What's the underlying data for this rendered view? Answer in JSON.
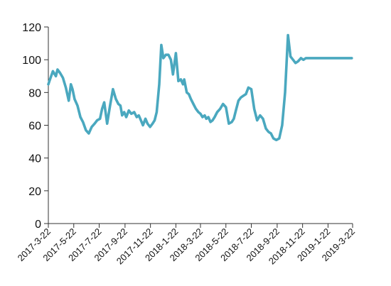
{
  "chart_data": {
    "type": "line",
    "title": "",
    "xlabel": "",
    "ylabel": "",
    "ylim": [
      0,
      120
    ],
    "y_ticks": [
      0,
      20,
      40,
      60,
      80,
      100,
      120
    ],
    "x_ticks": [
      "2017-3-22",
      "2017-5-22",
      "2017-7-22",
      "2017-9-22",
      "2017-11-22",
      "2018-1-22",
      "2018-3-22",
      "2018-5-22",
      "2018-7-22",
      "2018-9-22",
      "2018-11-22",
      "2019-1-22",
      "2019-3-22"
    ],
    "grid": false,
    "legend": "none",
    "colors": {
      "line": "#4aa8bf",
      "axis": "#333333"
    },
    "series": [
      {
        "x": [
          "2017-3-22",
          "2017-3-26",
          "2017-4-2",
          "2017-4-9",
          "2017-4-13",
          "2017-4-19",
          "2017-4-26",
          "2017-5-3",
          "2017-5-10",
          "2017-5-15",
          "2017-5-19",
          "2017-5-24",
          "2017-5-31",
          "2017-6-7",
          "2017-6-13",
          "2017-6-20",
          "2017-6-27",
          "2017-7-4",
          "2017-7-11",
          "2017-7-17",
          "2017-7-24",
          "2017-7-29",
          "2017-8-3",
          "2017-8-10",
          "2017-8-17",
          "2017-8-24",
          "2017-8-31",
          "2017-9-6",
          "2017-9-11",
          "2017-9-15",
          "2017-9-20",
          "2017-9-25",
          "2017-10-1",
          "2017-10-7",
          "2017-10-14",
          "2017-10-20",
          "2017-10-25",
          "2017-10-30",
          "2017-11-4",
          "2017-11-10",
          "2017-11-15",
          "2017-11-21",
          "2017-11-27",
          "2017-12-2",
          "2017-12-7",
          "2017-12-13",
          "2017-12-18",
          "2017-12-23",
          "2017-12-29",
          "2018-1-4",
          "2018-1-10",
          "2018-1-15",
          "2018-1-22",
          "2018-1-28",
          "2018-2-3",
          "2018-2-8",
          "2018-2-11",
          "2018-2-17",
          "2018-2-22",
          "2018-2-27",
          "2018-3-5",
          "2018-3-11",
          "2018-3-17",
          "2018-3-22",
          "2018-3-27",
          "2018-4-1",
          "2018-4-5",
          "2018-4-10",
          "2018-4-15",
          "2018-4-20",
          "2018-4-25",
          "2018-5-1",
          "2018-5-8",
          "2018-5-15",
          "2018-5-22",
          "2018-5-29",
          "2018-6-5",
          "2018-6-10",
          "2018-6-15",
          "2018-6-21",
          "2018-6-27",
          "2018-7-3",
          "2018-7-9",
          "2018-7-15",
          "2018-7-22",
          "2018-7-29",
          "2018-8-5",
          "2018-8-12",
          "2018-8-19",
          "2018-8-26",
          "2018-9-1",
          "2018-9-7",
          "2018-9-13",
          "2018-9-20",
          "2018-9-27",
          "2018-10-4",
          "2018-10-11",
          "2018-10-18",
          "2018-10-24",
          "2018-10-30",
          "2018-11-5",
          "2018-11-11",
          "2018-11-18",
          "2018-11-24",
          "2018-11-30",
          "2018-12-6",
          "2018-12-12",
          "2018-12-18",
          "2018-12-24",
          "2018-12-30",
          "2019-1-5",
          "2019-1-11",
          "2019-1-17",
          "2019-1-22",
          "2019-1-27",
          "2019-2-1",
          "2019-2-4",
          "2019-2-7",
          "2019-2-12",
          "2019-2-18",
          "2019-2-24",
          "2019-3-2",
          "2019-3-8",
          "2019-3-14",
          "2019-3-20"
        ],
        "values": [
          85,
          88,
          93,
          90,
          94,
          92,
          89,
          83,
          75,
          85,
          82,
          76,
          72,
          65,
          62,
          57,
          55,
          59,
          61,
          63,
          64,
          70,
          74,
          61,
          72,
          82,
          76,
          73,
          72,
          66,
          68,
          65,
          69,
          67,
          68,
          65,
          66,
          63,
          60,
          64,
          61,
          59,
          61,
          63,
          68,
          85,
          109,
          101,
          103,
          103,
          100,
          91,
          104,
          87,
          88,
          85,
          88,
          80,
          79,
          76,
          73,
          70,
          68,
          67,
          65,
          66,
          64,
          65,
          62,
          63,
          65,
          68,
          70,
          73,
          71,
          61,
          62,
          64,
          69,
          75,
          77,
          78,
          79,
          83,
          82,
          70,
          63,
          66,
          64,
          58,
          56,
          55,
          52,
          51,
          52,
          60,
          80,
          115,
          102,
          100,
          98,
          99,
          101,
          100,
          101,
          101,
          101,
          101,
          101,
          101,
          101,
          101,
          101,
          101,
          101,
          101,
          101,
          101,
          101,
          101,
          101,
          101,
          101,
          101,
          101
        ]
      }
    ]
  }
}
